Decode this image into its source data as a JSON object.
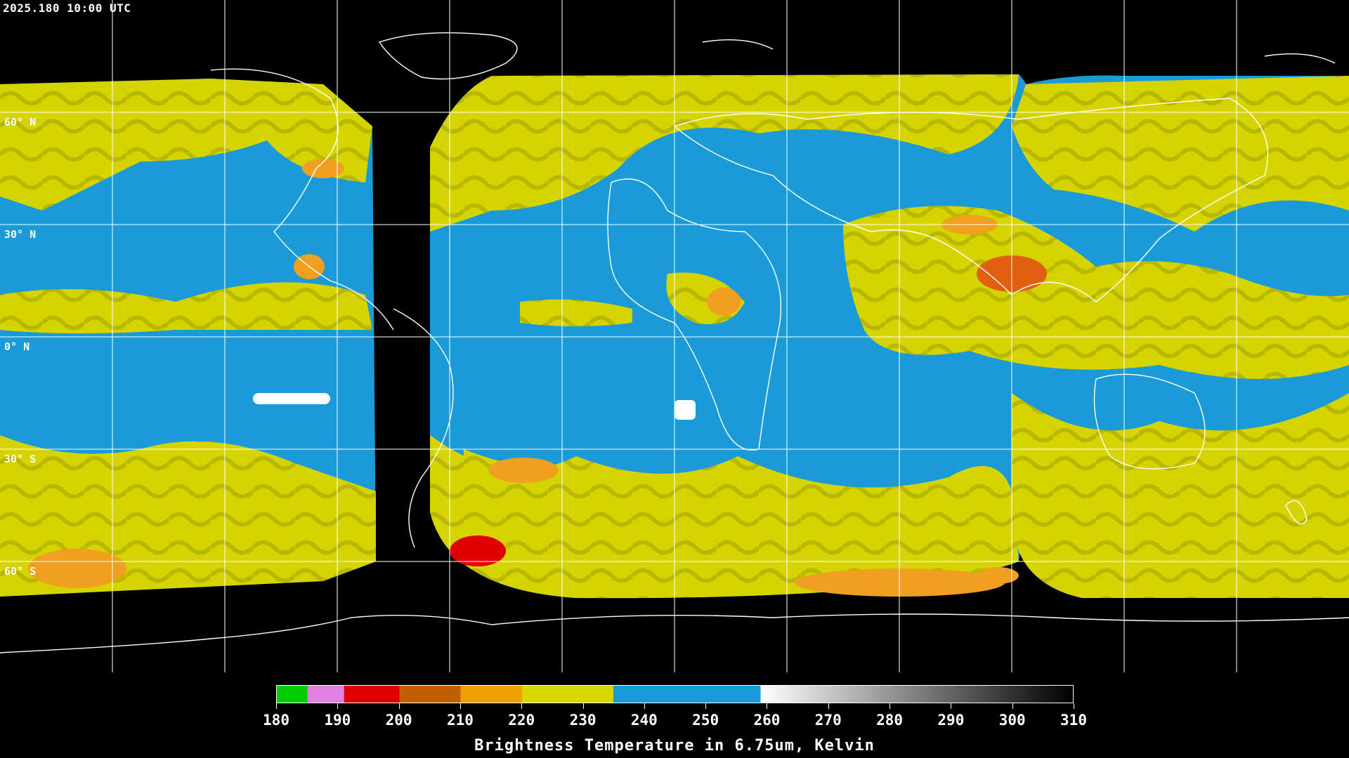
{
  "header": {
    "timestamp": "2025.180 10:00 UTC"
  },
  "map": {
    "projection": "equirectangular",
    "latitude_labels": [
      "60° N",
      "30° N",
      "0° N",
      "30° S",
      "60° S"
    ],
    "colors": {
      "background": "#000000",
      "dry_blue": "#1a9bd8",
      "moist_yellow": "#d6d400",
      "orange": "#f0a020",
      "red": "#e00000",
      "grid": "#ffffff",
      "coast": "#ffffff"
    }
  },
  "colorbar": {
    "ticks": [
      "180",
      "190",
      "200",
      "210",
      "220",
      "230",
      "240",
      "250",
      "260",
      "270",
      "280",
      "290",
      "300",
      "310"
    ],
    "title": "Brightness Temperature in 6.75um, Kelvin",
    "segments": [
      {
        "from": 180,
        "to": 185,
        "color": "#00cc00"
      },
      {
        "from": 185,
        "to": 191,
        "color": "#e080e0"
      },
      {
        "from": 191,
        "to": 200,
        "color": "#e00000"
      },
      {
        "from": 200,
        "to": 210,
        "color": "#c06000"
      },
      {
        "from": 210,
        "to": 220,
        "color": "#f0a000"
      },
      {
        "from": 220,
        "to": 235,
        "color": "#d8d800"
      },
      {
        "from": 235,
        "to": 259,
        "color": "#1a9bd8"
      },
      {
        "from": 259,
        "to": 310,
        "color": "#777777"
      }
    ]
  }
}
